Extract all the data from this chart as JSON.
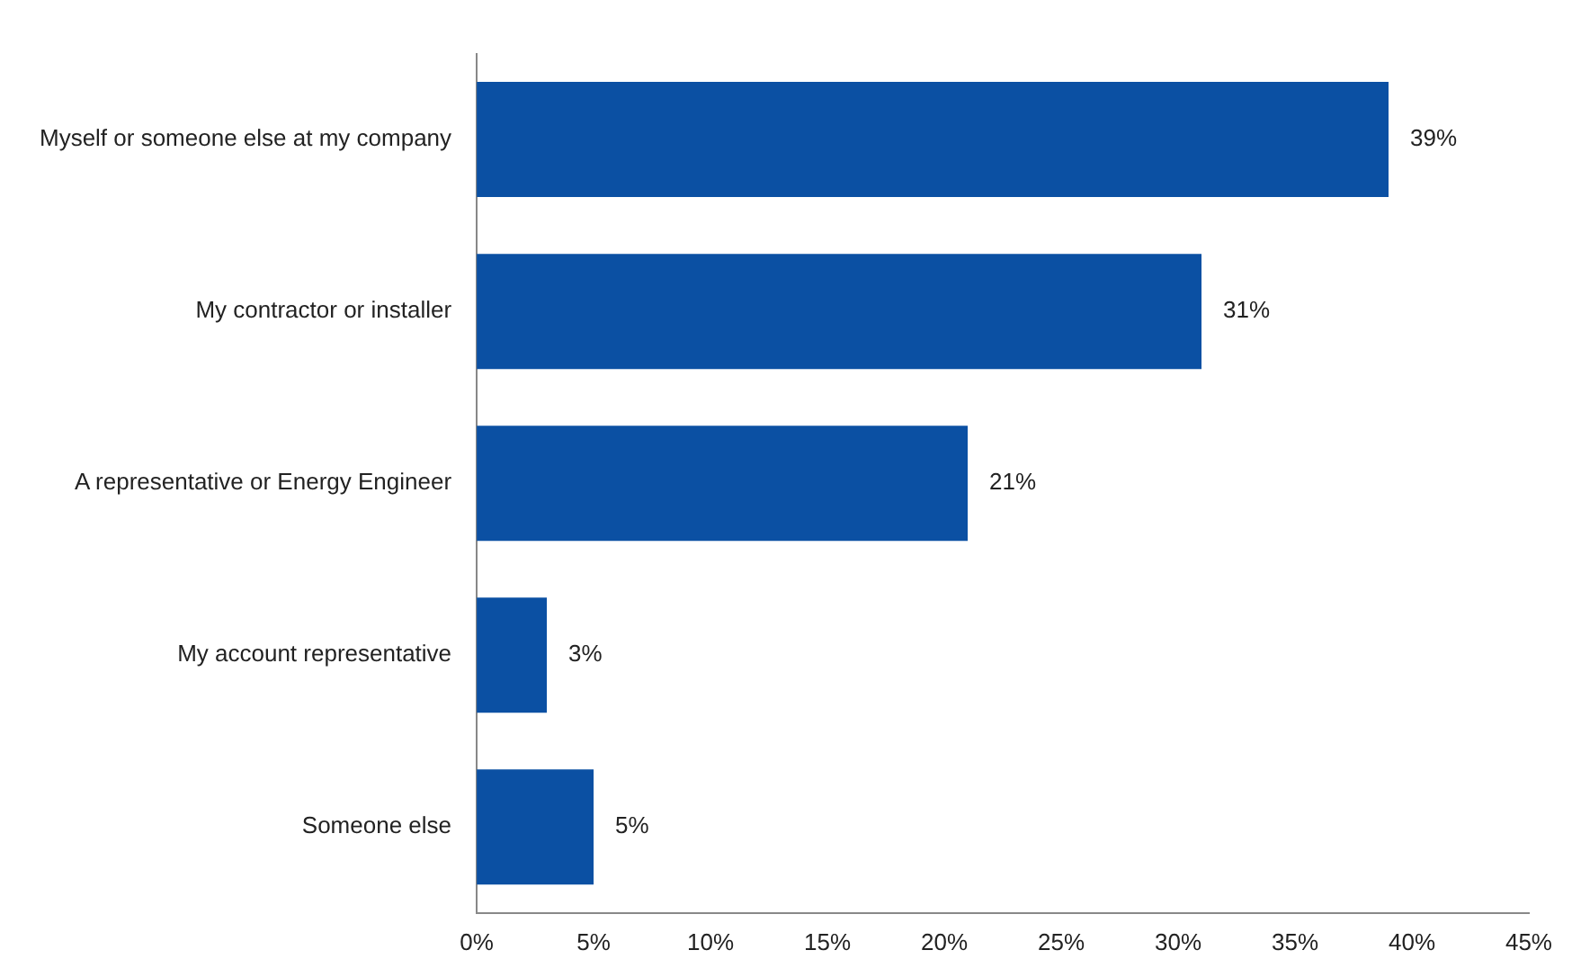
{
  "chart_data": {
    "type": "bar",
    "orientation": "horizontal",
    "categories": [
      "Myself or someone else at my company",
      "My contractor or installer",
      "A representative or Energy Engineer",
      "My account representative",
      "Someone else"
    ],
    "values": [
      39,
      31,
      21,
      3,
      5
    ],
    "value_labels": [
      "39%",
      "31%",
      "21%",
      "3%",
      "5%"
    ],
    "color": "#0b50a3",
    "xlim": [
      0,
      45
    ],
    "xticks": [
      {
        "value": 0,
        "label": "0%"
      },
      {
        "value": 5,
        "label": "5%"
      },
      {
        "value": 10,
        "label": "10%"
      },
      {
        "value": 15,
        "label": "15%"
      },
      {
        "value": 20,
        "label": "20%"
      },
      {
        "value": 25,
        "label": "25%"
      },
      {
        "value": 30,
        "label": "30%"
      },
      {
        "value": 35,
        "label": "35%"
      },
      {
        "value": 40,
        "label": "40%"
      },
      {
        "value": 45,
        "label": "45%"
      }
    ],
    "grid": false,
    "legend": false
  }
}
